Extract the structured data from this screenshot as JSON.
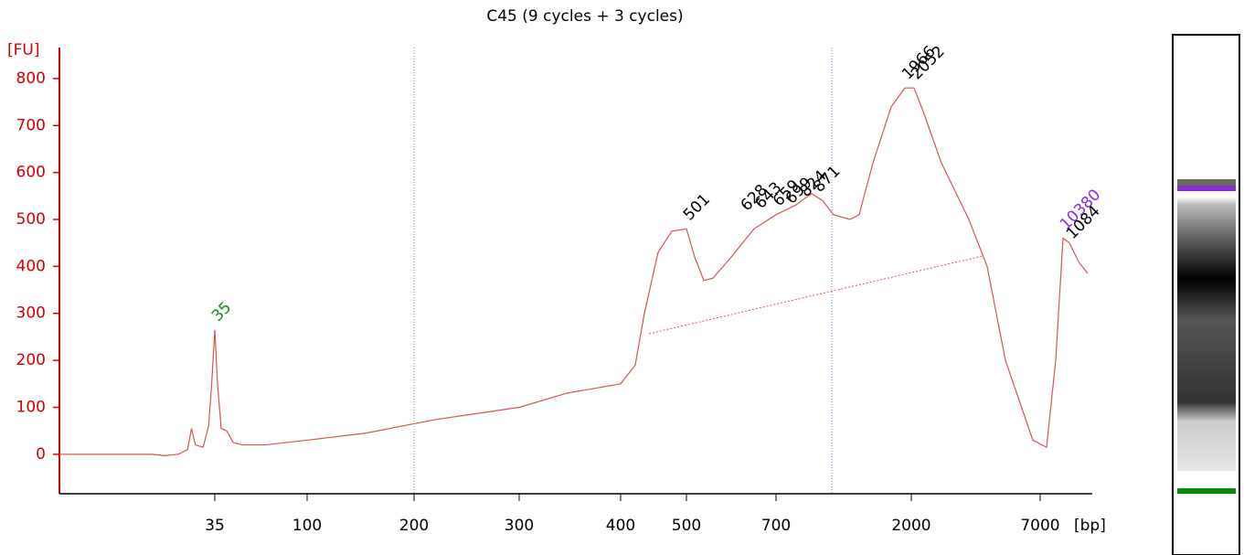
{
  "chart_data": {
    "type": "line",
    "title": "C45 (9 cycles + 3 cycles)",
    "y_label": "[FU]",
    "x_label": "[bp]",
    "xlim": [
      15,
      14000
    ],
    "xticks": [
      35,
      100,
      200,
      300,
      400,
      500,
      700,
      2000,
      7000
    ],
    "ylim": [
      -84,
      866
    ],
    "yticks": [
      0,
      100,
      200,
      300,
      400,
      500,
      600,
      700,
      800
    ],
    "series": [
      {
        "name": "C45",
        "color": "#d9534f",
        "x": [
          15,
          27,
          28.5,
          30.3,
          31.5,
          32,
          32.5,
          33.5,
          34.2,
          34.6,
          35,
          36.9,
          39.5,
          43.4,
          48,
          54.4,
          70.4,
          100,
          154.7,
          200,
          223.5,
          300,
          346.8,
          400,
          422.2,
          436.1,
          456.9,
          477.8,
          500,
          518.4,
          538.8,
          559.2,
          600,
          651,
          700,
          884,
          1043,
          1148,
          1253,
          1411,
          1499,
          1631,
          1807,
          1939,
          2106,
          2461,
          3170,
          4234,
          4943,
          5652,
          6716,
          7891,
          9164,
          10182,
          11073,
          12345,
          13618
        ],
        "values": [
          0,
          0,
          -3,
          0,
          10,
          55,
          20,
          15,
          60,
          150,
          265,
          150,
          55,
          50,
          25,
          20,
          20,
          30,
          45,
          65,
          75,
          100,
          130,
          150,
          190,
          300,
          430,
          475,
          480,
          420,
          370,
          375,
          420,
          480,
          510,
          530,
          555,
          540,
          510,
          500,
          510,
          620,
          740,
          780,
          780,
          730,
          620,
          500,
          400,
          200,
          30,
          15,
          200,
          460,
          450,
          410,
          385
        ]
      }
    ],
    "annotations": [
      {
        "label": "35",
        "x": 35,
        "y": 265,
        "color": "#1a8a1a"
      },
      {
        "label": "501",
        "x": 500,
        "y": 480,
        "color": "#000000"
      },
      {
        "label": "628",
        "x": 628,
        "y": 500,
        "color": "#000000"
      },
      {
        "label": "643",
        "x": 660,
        "y": 505,
        "color": "#000000"
      },
      {
        "label": "659",
        "x": 700,
        "y": 510,
        "color": "#000000"
      },
      {
        "label": "699",
        "x": 820,
        "y": 515,
        "color": "#000000"
      },
      {
        "label": "824",
        "x": 960,
        "y": 530,
        "color": "#000000"
      },
      {
        "label": "871",
        "x": 1090,
        "y": 540,
        "color": "#000000"
      },
      {
        "label": "1966",
        "x": 1939,
        "y": 780,
        "color": "#000000"
      },
      {
        "label": "2052",
        "x": 2106,
        "y": 780,
        "color": "#000000"
      },
      {
        "label": "10380",
        "x": 10182,
        "y": 460,
        "color": "#8a2be2"
      },
      {
        "label": "1084",
        "x": 11073,
        "y": 440,
        "color": "#000000"
      }
    ]
  }
}
